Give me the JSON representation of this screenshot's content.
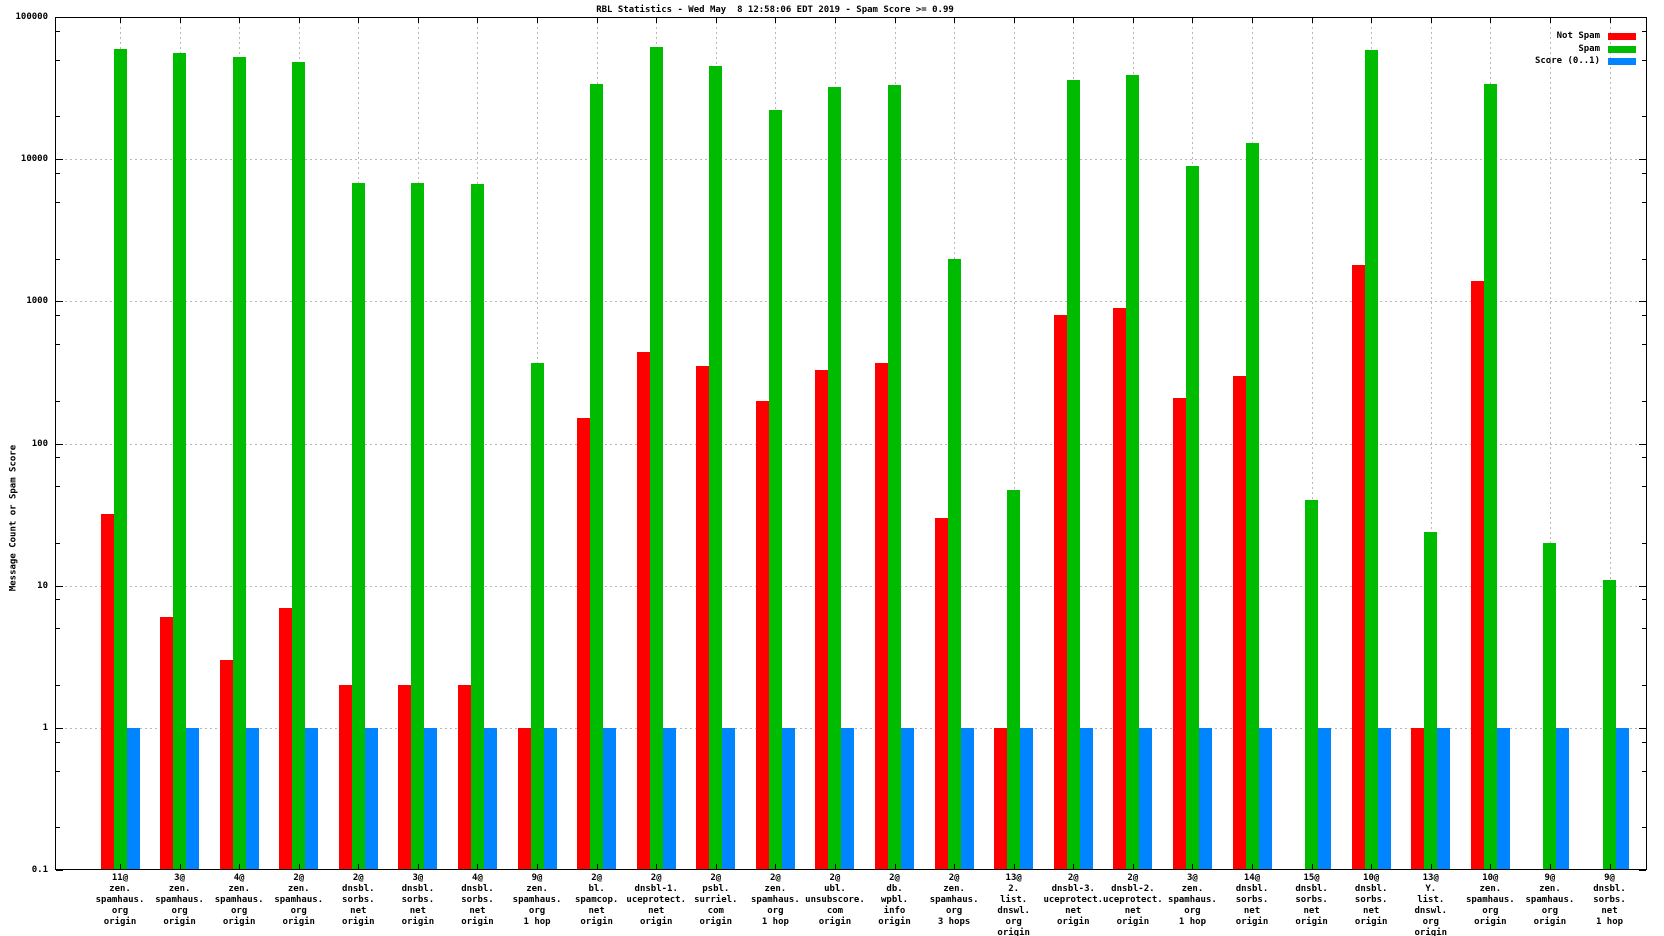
{
  "title": "RBL Statistics - Wed May  8 12:58:06 EDT 2019 - Spam Score >= 0.99",
  "ylabel": "Message Count or Spam Score",
  "legend": {
    "position": "top-right",
    "entries": [
      {
        "label": "Not Spam",
        "color": "#ff0000"
      },
      {
        "label": "Spam",
        "color": "#00bc00"
      },
      {
        "label": "Score (0..1)",
        "color": "#0084ff"
      }
    ]
  },
  "chart_data": {
    "type": "bar",
    "title": "RBL Statistics - Wed May  8 12:58:06 EDT 2019 - Spam Score >= 0.99",
    "ylabel": "Message Count or Spam Score",
    "xlabel": "",
    "yscale": "log",
    "ylim": [
      0.1,
      100000
    ],
    "yticks": [
      100000,
      10000,
      1000,
      100,
      10,
      1,
      0.1
    ],
    "ytick_labels": [
      "100000",
      "10000",
      "1000",
      "100",
      "10",
      "1",
      "0.1"
    ],
    "grid": true,
    "legend_position": "top-right",
    "categories": [
      [
        "11@",
        "zen.",
        "spamhaus.",
        "org",
        "origin"
      ],
      [
        "3@",
        "zen.",
        "spamhaus.",
        "org",
        "origin"
      ],
      [
        "4@",
        "zen.",
        "spamhaus.",
        "org",
        "origin"
      ],
      [
        "2@",
        "zen.",
        "spamhaus.",
        "org",
        "origin"
      ],
      [
        "2@",
        "dnsbl.",
        "sorbs.",
        "net",
        "origin"
      ],
      [
        "3@",
        "dnsbl.",
        "sorbs.",
        "net",
        "origin"
      ],
      [
        "4@",
        "dnsbl.",
        "sorbs.",
        "net",
        "origin"
      ],
      [
        "9@",
        "zen.",
        "spamhaus.",
        "org",
        "1 hop"
      ],
      [
        "2@",
        "bl.",
        "spamcop.",
        "net",
        "origin"
      ],
      [
        "2@",
        "dnsbl-1.",
        "uceprotect.",
        "net",
        "origin"
      ],
      [
        "2@",
        "psbl.",
        "surriel.",
        "com",
        "origin"
      ],
      [
        "2@",
        "zen.",
        "spamhaus.",
        "org",
        "1 hop"
      ],
      [
        "2@",
        "ubl.",
        "unsubscore.",
        "com",
        "origin"
      ],
      [
        "2@",
        "db.",
        "wpbl.",
        "info",
        "origin"
      ],
      [
        "2@",
        "zen.",
        "spamhaus.",
        "org",
        "3 hops"
      ],
      [
        "13@",
        "2.",
        "list.",
        "dnswl.",
        "org",
        "origin"
      ],
      [
        "2@",
        "dnsbl-3.",
        "uceprotect.",
        "net",
        "origin"
      ],
      [
        "2@",
        "dnsbl-2.",
        "uceprotect.",
        "net",
        "origin"
      ],
      [
        "3@",
        "zen.",
        "spamhaus.",
        "org",
        "1 hop"
      ],
      [
        "14@",
        "dnsbl.",
        "sorbs.",
        "net",
        "origin"
      ],
      [
        "15@",
        "dnsbl.",
        "sorbs.",
        "net",
        "origin"
      ],
      [
        "10@",
        "dnsbl.",
        "sorbs.",
        "net",
        "origin"
      ],
      [
        "13@",
        "Y.",
        "list.",
        "dnswl.",
        "org",
        "origin"
      ],
      [
        "10@",
        "zen.",
        "spamhaus.",
        "org",
        "origin"
      ],
      [
        "9@",
        "zen.",
        "spamhaus.",
        "org",
        "origin"
      ],
      [
        "9@",
        "dnsbl.",
        "sorbs.",
        "net",
        "1 hop"
      ]
    ],
    "series": [
      {
        "name": "Not Spam",
        "color": "#ff0000",
        "values": [
          32,
          6,
          3,
          7,
          2,
          2,
          2,
          1,
          150,
          440,
          350,
          200,
          330,
          370,
          30,
          1,
          800,
          900,
          210,
          300,
          null,
          1800,
          1,
          1400,
          null,
          null
        ]
      },
      {
        "name": "Spam",
        "color": "#00bc00",
        "values": [
          60000,
          56000,
          52000,
          48000,
          6800,
          6800,
          6700,
          370,
          34000,
          62000,
          45000,
          22000,
          32000,
          33000,
          2000,
          47,
          36000,
          39000,
          9000,
          13000,
          40,
          59000,
          24,
          34000,
          20,
          11
        ]
      },
      {
        "name": "Score (0..1)",
        "color": "#0084ff",
        "values": [
          1,
          1,
          1,
          1,
          1,
          1,
          1,
          1,
          1,
          1,
          1,
          1,
          1,
          1,
          1,
          1,
          1,
          1,
          1,
          1,
          1,
          1,
          1,
          1,
          1,
          1
        ]
      }
    ]
  }
}
